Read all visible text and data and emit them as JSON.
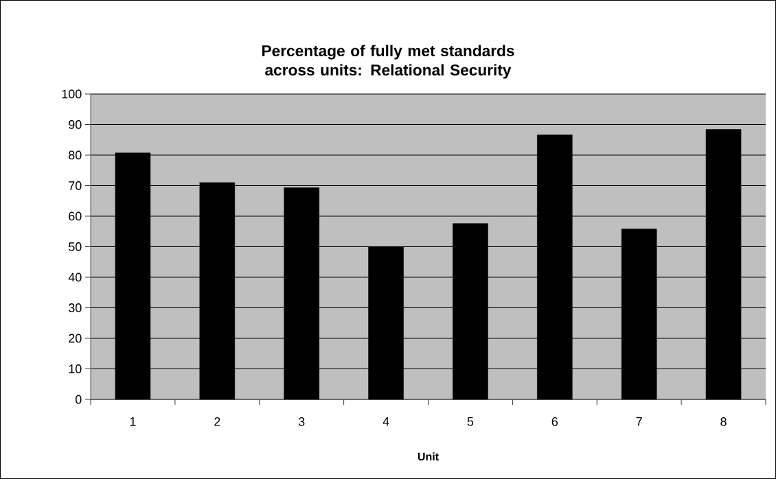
{
  "chart_data": {
    "type": "bar",
    "title": "Percentage of fully met standards across units: Relational Security",
    "xlabel": "Unit",
    "categories": [
      "1",
      "2",
      "3",
      "4",
      "5",
      "6",
      "7",
      "8"
    ],
    "values": [
      80.7,
      71.0,
      69.3,
      50.0,
      57.6,
      86.6,
      55.8,
      88.4
    ],
    "color": "#000000",
    "ylim": [
      0,
      100
    ],
    "yticks": [
      0,
      10,
      20,
      30,
      40,
      50,
      60,
      70,
      80,
      90,
      100
    ],
    "grid": "y"
  }
}
